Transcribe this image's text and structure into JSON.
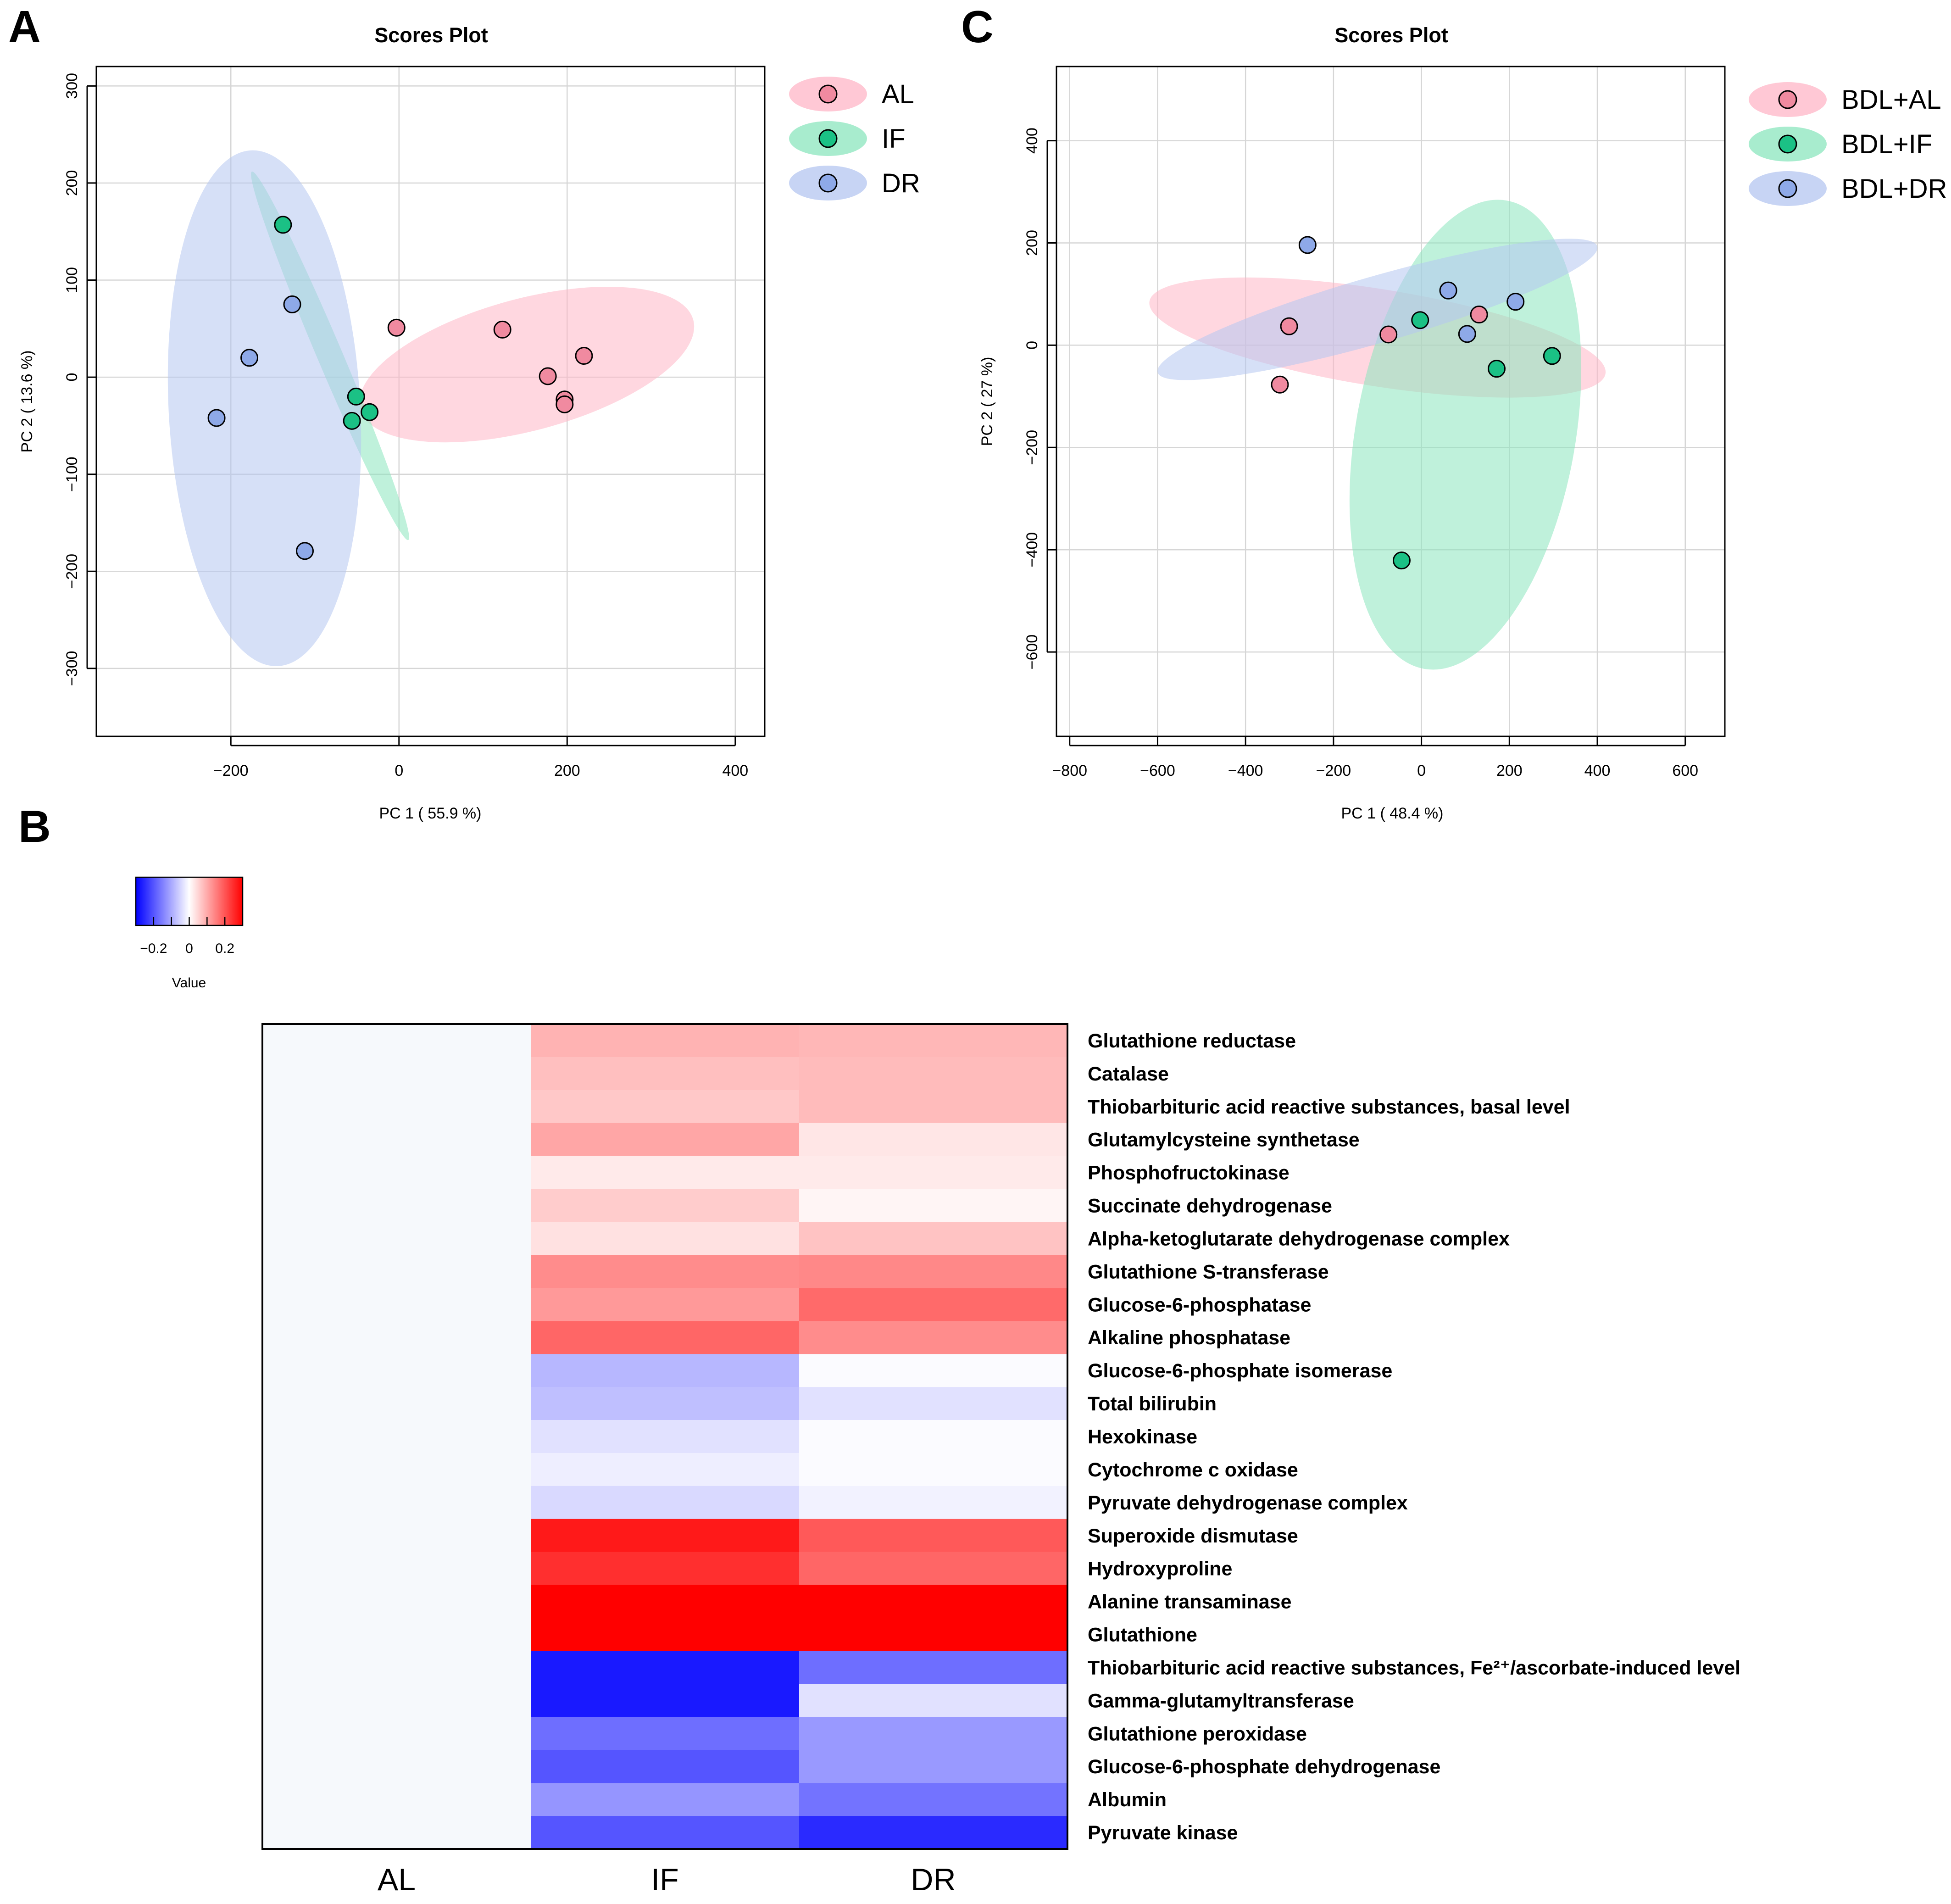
{
  "chart_data": [
    {
      "id": "A",
      "panel_letter": "A",
      "type": "scatter",
      "title": "Scores Plot",
      "xlabel": "PC 1 ( 55.9 %)",
      "ylabel": "PC 2 ( 13.6 %)",
      "xlim": [
        -360,
        435
      ],
      "ylim": [
        -370,
        320
      ],
      "xticks": [
        -200,
        0,
        200,
        400
      ],
      "yticks": [
        -300,
        -200,
        -100,
        0,
        100,
        200,
        300
      ],
      "grid": true,
      "legend_position": "top-right",
      "series": [
        {
          "name": "AL",
          "color": "#f08aa0",
          "ellipse_color": "#ffb6c7",
          "points": [
            [
              -3,
              51
            ],
            [
              123,
              49
            ],
            [
              220,
              22
            ],
            [
              177,
              1
            ],
            [
              197,
              -23
            ],
            [
              197,
              -28
            ]
          ],
          "ellipse": {
            "cx": 152,
            "cy": 13,
            "rx": 205,
            "ry": 68,
            "angle": -15
          }
        },
        {
          "name": "IF",
          "color": "#1bc185",
          "ellipse_color": "#8be6bd",
          "points": [
            [
              -138,
              157
            ],
            [
              -51,
              -20
            ],
            [
              -35,
              -36
            ],
            [
              -56,
              -45
            ]
          ],
          "ellipse": {
            "cx": -82,
            "cy": 22,
            "rx": 238,
            "ry": 13,
            "angle": 67
          }
        },
        {
          "name": "DR",
          "color": "#8ea9e8",
          "ellipse_color": "#b4c6f0",
          "points": [
            [
              -127,
              75
            ],
            [
              -178,
              20
            ],
            [
              -217,
              -42
            ],
            [
              -112,
              -179
            ]
          ],
          "ellipse": {
            "cx": -160,
            "cy": -32,
            "rx": 114,
            "ry": 266,
            "angle": -3
          }
        }
      ]
    },
    {
      "id": "C",
      "panel_letter": "C",
      "type": "scatter",
      "title": "Scores Plot",
      "xlabel": "PC 1 ( 48.4 %)",
      "ylabel": "PC 2 ( 27 %)",
      "xlim": [
        -830,
        690
      ],
      "ylim": [
        -765,
        545
      ],
      "xticks": [
        -800,
        -600,
        -400,
        -200,
        0,
        200,
        400,
        600
      ],
      "yticks": [
        -600,
        -400,
        -200,
        0,
        200,
        400
      ],
      "grid": true,
      "legend_position": "top-right",
      "series": [
        {
          "name": "BDL+AL",
          "color": "#f08aa0",
          "ellipse_color": "#ffb6c7",
          "points": [
            [
              -301,
              37
            ],
            [
              -322,
              -77
            ],
            [
              -75,
              21
            ],
            [
              131,
              60
            ]
          ],
          "ellipse": {
            "cx": -100,
            "cy": 15,
            "rx": 525,
            "ry": 95,
            "angle": 9
          }
        },
        {
          "name": "BDL+IF",
          "color": "#1bc185",
          "ellipse_color": "#8be6bd",
          "points": [
            [
              -3,
              49
            ],
            [
              171,
              -46
            ],
            [
              297,
              -21
            ],
            [
              -45,
              -421
            ]
          ],
          "ellipse": {
            "cx": 100,
            "cy": -175,
            "rx": 250,
            "ry": 465,
            "angle": 10
          }
        },
        {
          "name": "BDL+DR",
          "color": "#8ea9e8",
          "ellipse_color": "#b4c6f0",
          "points": [
            [
              -259,
              196
            ],
            [
              61,
              107
            ],
            [
              104,
              22
            ],
            [
              214,
              85
            ]
          ],
          "ellipse": {
            "cx": -100,
            "cy": 70,
            "rx": 520,
            "ry": 65,
            "angle": -16
          }
        }
      ]
    },
    {
      "id": "B",
      "panel_letter": "B",
      "type": "heatmap",
      "columns": [
        "AL",
        "IF",
        "DR"
      ],
      "colorbar": {
        "label": "Value",
        "ticks": [
          -0.2,
          0,
          0.2
        ],
        "tick_labels": [
          "−0.2",
          "0",
          "0.2"
        ],
        "range": [
          -0.3,
          0.3
        ]
      },
      "rows": [
        {
          "label": "Glutathione reductase",
          "values": [
            0,
            0.09,
            0.085
          ]
        },
        {
          "label": "Catalase",
          "values": [
            0,
            0.075,
            0.08
          ]
        },
        {
          "label": "Thiobarbituric acid reactive substances, basal level",
          "values": [
            0,
            0.065,
            0.08
          ]
        },
        {
          "label": "Glutamylcysteine synthetase",
          "values": [
            0,
            0.105,
            0.03
          ]
        },
        {
          "label": "Phosphofructokinase",
          "values": [
            0,
            0.025,
            0.025
          ]
        },
        {
          "label": "Succinate dehydrogenase",
          "values": [
            0,
            0.06,
            0.012
          ]
        },
        {
          "label": "Alpha-ketoglutarate dehydrogenase complex",
          "values": [
            0,
            0.035,
            0.07
          ]
        },
        {
          "label": "Glutathione S-transferase",
          "values": [
            0,
            0.135,
            0.14
          ]
        },
        {
          "label": "Glucose-6-phosphatase",
          "values": [
            0,
            0.12,
            0.175
          ]
        },
        {
          "label": "Alkaline phosphatase",
          "values": [
            0,
            0.18,
            0.135
          ]
        },
        {
          "label": "Glucose-6-phosphate isomerase",
          "values": [
            0,
            -0.085,
            -0.005
          ]
        },
        {
          "label": "Total bilirubin",
          "values": [
            0,
            -0.075,
            -0.035
          ]
        },
        {
          "label": "Hexokinase",
          "values": [
            0,
            -0.035,
            -0.005
          ]
        },
        {
          "label": "Cytochrome c oxidase",
          "values": [
            0,
            -0.02,
            -0.005
          ]
        },
        {
          "label": "Pyruvate dehydrogenase complex",
          "values": [
            0,
            -0.045,
            -0.015
          ]
        },
        {
          "label": "Superoxide dismutase",
          "values": [
            0,
            0.27,
            0.195
          ]
        },
        {
          "label": "Hydroxyproline",
          "values": [
            0,
            0.245,
            0.18
          ]
        },
        {
          "label": "Alanine transaminase",
          "values": [
            0,
            0.3,
            0.3
          ]
        },
        {
          "label": "Glutathione",
          "values": [
            0,
            0.3,
            0.3
          ]
        },
        {
          "label": "Thiobarbituric acid reactive substances, Fe²⁺/ascorbate-induced level",
          "values": [
            0,
            -0.27,
            -0.17
          ]
        },
        {
          "label": "Gamma-glutamyltransferase",
          "values": [
            0,
            -0.27,
            -0.035
          ]
        },
        {
          "label": "Glutathione peroxidase",
          "values": [
            0,
            -0.17,
            -0.12
          ]
        },
        {
          "label": "Glucose-6-phosphate dehydrogenase",
          "values": [
            0,
            -0.2,
            -0.12
          ]
        },
        {
          "label": "Albumin",
          "values": [
            0,
            -0.125,
            -0.165
          ]
        },
        {
          "label": "Pyruvate kinase",
          "values": [
            0,
            -0.2,
            -0.25
          ]
        }
      ]
    }
  ]
}
